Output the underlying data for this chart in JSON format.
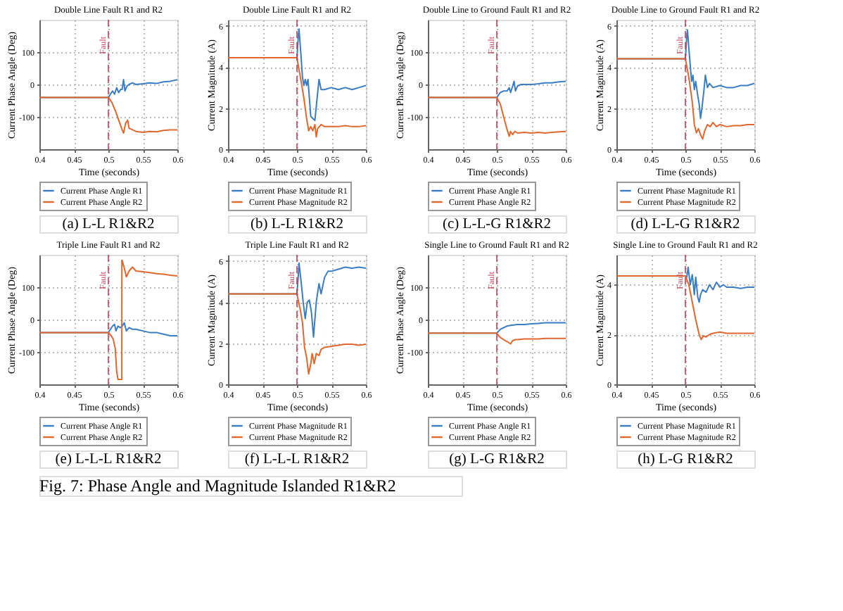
{
  "chart_data": [
    {
      "type": "line",
      "title": "Double Line Fault R1 and R2",
      "xlabel": "Time (seconds)",
      "ylabel": "Current Phase Angle (Deg)",
      "xlim": [
        0.4,
        0.6
      ],
      "xticks": [
        0.4,
        0.45,
        0.5,
        0.55,
        0.6
      ],
      "ylim": [
        -200,
        200
      ],
      "yticks": [
        -100,
        0,
        100
      ],
      "grid": true,
      "legend": "bottom",
      "line_style": "solid",
      "marker": "none",
      "series": [
        {
          "name": "Current Phase Angle R1",
          "color": "#3a7dc4",
          "x": [
            0.4,
            0.5,
            0.503,
            0.506,
            0.509,
            0.512,
            0.515,
            0.518,
            0.52,
            0.522,
            0.524,
            0.527,
            0.53,
            0.535,
            0.54,
            0.55,
            0.56,
            0.57,
            0.58,
            0.59,
            0.6
          ],
          "values": [
            -40,
            -40,
            -30,
            -20,
            -30,
            -10,
            -25,
            -15,
            -15,
            15,
            -20,
            -5,
            0,
            5,
            0,
            2,
            5,
            3,
            8,
            10,
            15
          ]
        },
        {
          "name": "Current Phase Angle R2",
          "color": "#e0682e",
          "x": [
            0.4,
            0.5,
            0.505,
            0.51,
            0.515,
            0.52,
            0.522,
            0.525,
            0.528,
            0.53,
            0.535,
            0.54,
            0.55,
            0.56,
            0.57,
            0.58,
            0.59,
            0.6
          ],
          "values": [
            -40,
            -40,
            -55,
            -80,
            -110,
            -140,
            -150,
            -120,
            -110,
            -135,
            -140,
            -145,
            -148,
            -145,
            -146,
            -142,
            -140,
            -140
          ]
        }
      ],
      "ref_lines": [
        {
          "axis": "x",
          "value": 0.5,
          "label": "Fault",
          "color": "#c0405a",
          "line_style": "dashed"
        }
      ],
      "annotations": [
        "(a) L-L R1&R2"
      ]
    },
    {
      "type": "line",
      "title": "Double Line Fault R1 and R2",
      "xlabel": "Time (seconds)",
      "ylabel": "Current Magnitude (A)",
      "xlim": [
        0.4,
        0.6
      ],
      "xticks": [
        0.4,
        0.45,
        0.5,
        0.55,
        0.6
      ],
      "ylim": [
        0,
        6.3
      ],
      "yticks": [
        0,
        2,
        4,
        6
      ],
      "grid": true,
      "legend": "bottom",
      "line_style": "solid",
      "marker": "none",
      "series": [
        {
          "name": "Current Phase Magnitude R1",
          "color": "#3a7dc4",
          "x": [
            0.4,
            0.5,
            0.502,
            0.503,
            0.506,
            0.508,
            0.51,
            0.512,
            0.514,
            0.516,
            0.518,
            0.52,
            0.523,
            0.526,
            0.529,
            0.532,
            0.535,
            0.54,
            0.55,
            0.56,
            0.57,
            0.58,
            0.59,
            0.6
          ],
          "values": [
            4.45,
            4.45,
            5.5,
            5.85,
            4.5,
            3.5,
            3.1,
            3.4,
            3.1,
            3.4,
            2.5,
            1.6,
            1.5,
            1.4,
            2.4,
            3.4,
            2.9,
            2.9,
            3.0,
            2.9,
            3.0,
            2.9,
            3.0,
            3.1
          ]
        },
        {
          "name": "Current Phase Magnitude R2",
          "color": "#e0682e",
          "x": [
            0.4,
            0.5,
            0.505,
            0.51,
            0.514,
            0.517,
            0.52,
            0.523,
            0.526,
            0.528,
            0.53,
            0.535,
            0.54,
            0.55,
            0.56,
            0.57,
            0.58,
            0.59,
            0.6
          ],
          "values": [
            4.45,
            4.45,
            3.5,
            2.5,
            1.5,
            0.9,
            1.1,
            0.9,
            1.2,
            0.6,
            1.0,
            1.2,
            1.1,
            1.1,
            1.1,
            1.15,
            1.1,
            1.1,
            1.15
          ]
        }
      ],
      "ref_lines": [
        {
          "axis": "x",
          "value": 0.5,
          "label": "Fault",
          "color": "#c0405a",
          "line_style": "dashed"
        }
      ],
      "annotations": [
        "(b) L-L R1&R2"
      ]
    },
    {
      "type": "line",
      "title": "Double Line to Ground Fault R1 and R2",
      "xlabel": "Time (seconds)",
      "ylabel": "Current Phase Angle (Deg)",
      "xlim": [
        0.4,
        0.6
      ],
      "xticks": [
        0.4,
        0.45,
        0.5,
        0.55,
        0.6
      ],
      "ylim": [
        -200,
        200
      ],
      "yticks": [
        -100,
        0,
        100
      ],
      "grid": true,
      "legend": "bottom",
      "line_style": "solid",
      "marker": "none",
      "series": [
        {
          "name": "Current Phase Angle R1",
          "color": "#3a7dc4",
          "x": [
            0.4,
            0.5,
            0.505,
            0.51,
            0.515,
            0.518,
            0.52,
            0.523,
            0.525,
            0.527,
            0.53,
            0.535,
            0.54,
            0.55,
            0.56,
            0.57,
            0.58,
            0.59,
            0.6
          ],
          "values": [
            -40,
            -40,
            -25,
            -20,
            -20,
            -10,
            -25,
            -5,
            10,
            -20,
            -5,
            0,
            0,
            0,
            2,
            5,
            5,
            8,
            10
          ]
        },
        {
          "name": "Current Phase Angle R2",
          "color": "#e0682e",
          "x": [
            0.4,
            0.5,
            0.505,
            0.51,
            0.515,
            0.518,
            0.52,
            0.523,
            0.526,
            0.53,
            0.54,
            0.55,
            0.56,
            0.57,
            0.58,
            0.59,
            0.6
          ],
          "values": [
            -40,
            -40,
            -60,
            -100,
            -140,
            -160,
            -145,
            -155,
            -145,
            -150,
            -148,
            -150,
            -148,
            -150,
            -148,
            -146,
            -145
          ]
        }
      ],
      "ref_lines": [
        {
          "axis": "x",
          "value": 0.5,
          "label": "Fault",
          "color": "#c0405a",
          "line_style": "dashed"
        }
      ],
      "annotations": [
        "(c) L-L-G R1&R2"
      ]
    },
    {
      "type": "line",
      "title": "Double Line to Ground Fault R1 and R2",
      "xlabel": "Time (seconds)",
      "ylabel": "Current Magnitude (A)",
      "xlim": [
        0.4,
        0.6
      ],
      "xticks": [
        0.4,
        0.45,
        0.5,
        0.55,
        0.6
      ],
      "ylim": [
        0,
        6.3
      ],
      "yticks": [
        0,
        2,
        4,
        6
      ],
      "grid": true,
      "legend": "bottom",
      "line_style": "solid",
      "marker": "none",
      "series": [
        {
          "name": "Current Phase Magnitude R1",
          "color": "#3a7dc4",
          "x": [
            0.4,
            0.5,
            0.502,
            0.503,
            0.506,
            0.509,
            0.511,
            0.513,
            0.515,
            0.518,
            0.52,
            0.522,
            0.524,
            0.527,
            0.529,
            0.532,
            0.535,
            0.54,
            0.55,
            0.56,
            0.57,
            0.58,
            0.59,
            0.6
          ],
          "values": [
            4.4,
            4.4,
            5.5,
            5.8,
            4.5,
            3.3,
            3.6,
            2.9,
            3.3,
            2.6,
            2.2,
            1.5,
            2.0,
            2.9,
            3.6,
            3.0,
            3.2,
            3.0,
            3.1,
            3.0,
            3.0,
            3.1,
            3.1,
            3.2
          ]
        },
        {
          "name": "Current Phase Magnitude R2",
          "color": "#e0682e",
          "x": [
            0.4,
            0.5,
            0.505,
            0.51,
            0.513,
            0.516,
            0.519,
            0.522,
            0.525,
            0.528,
            0.532,
            0.536,
            0.54,
            0.545,
            0.55,
            0.56,
            0.57,
            0.58,
            0.59,
            0.6
          ],
          "values": [
            4.4,
            4.4,
            3.5,
            2.3,
            1.2,
            0.8,
            1.0,
            0.7,
            0.5,
            0.9,
            1.2,
            1.1,
            1.3,
            1.1,
            1.2,
            1.1,
            1.15,
            1.15,
            1.2,
            1.2
          ]
        }
      ],
      "ref_lines": [
        {
          "axis": "x",
          "value": 0.5,
          "label": "Fault",
          "color": "#c0405a",
          "line_style": "dashed"
        }
      ],
      "annotations": [
        "(d) L-L-G R1&R2"
      ]
    },
    {
      "type": "line",
      "title": "Triple Line Fault R1 and R2",
      "xlabel": "Time (seconds)",
      "ylabel": "Current Phase Angle (Deg)",
      "xlim": [
        0.4,
        0.6
      ],
      "xticks": [
        0.4,
        0.45,
        0.5,
        0.55,
        0.6
      ],
      "ylim": [
        -200,
        200
      ],
      "yticks": [
        -100,
        0,
        100
      ],
      "grid": true,
      "legend": "bottom",
      "line_style": "solid",
      "marker": "none",
      "series": [
        {
          "name": "Current Phase Angle R1",
          "color": "#3a7dc4",
          "x": [
            0.4,
            0.5,
            0.503,
            0.506,
            0.509,
            0.511,
            0.514,
            0.517,
            0.52,
            0.523,
            0.526,
            0.53,
            0.535,
            0.54,
            0.55,
            0.56,
            0.57,
            0.58,
            0.59,
            0.6
          ],
          "values": [
            -40,
            -40,
            -30,
            -20,
            -15,
            -35,
            -20,
            -25,
            -20,
            -10,
            -35,
            -25,
            -30,
            -30,
            -35,
            -40,
            -40,
            -45,
            -50,
            -50
          ]
        },
        {
          "name": "Current Phase Angle R2",
          "color": "#e0682e",
          "x": [
            0.4,
            0.5,
            0.504,
            0.507,
            0.51,
            0.512,
            0.514,
            0.5195,
            0.5196,
            0.52,
            0.523,
            0.526,
            0.53,
            0.535,
            0.54,
            0.55,
            0.56,
            0.57,
            0.58,
            0.59,
            0.6
          ],
          "values": [
            -40,
            -40,
            -50,
            -60,
            -90,
            -160,
            -185,
            -185,
            183,
            183,
            160,
            132,
            150,
            162,
            150,
            148,
            145,
            142,
            140,
            137,
            135
          ]
        }
      ],
      "ref_lines": [
        {
          "axis": "x",
          "value": 0.5,
          "label": "Fault",
          "color": "#c0405a",
          "line_style": "dashed"
        }
      ],
      "annotations": [
        "(e) L-L-L R1&R2"
      ]
    },
    {
      "type": "line",
      "title": "Triple Line Fault R1 and R2",
      "xlabel": "Time (seconds)",
      "ylabel": "Current Magnitude (A)",
      "xlim": [
        0.4,
        0.6
      ],
      "xticks": [
        0.4,
        0.45,
        0.5,
        0.55,
        0.6
      ],
      "ylim": [
        0,
        6.3
      ],
      "yticks": [
        0,
        2,
        4,
        6
      ],
      "grid": true,
      "legend": "bottom",
      "line_style": "solid",
      "marker": "none",
      "series": [
        {
          "name": "Current Phase Magnitude R1",
          "color": "#3a7dc4",
          "x": [
            0.4,
            0.5,
            0.502,
            0.503,
            0.506,
            0.509,
            0.512,
            0.515,
            0.518,
            0.521,
            0.524,
            0.528,
            0.532,
            0.535,
            0.54,
            0.545,
            0.55,
            0.56,
            0.57,
            0.58,
            0.59,
            0.6
          ],
          "values": [
            4.4,
            4.4,
            5.3,
            5.9,
            5.0,
            4.0,
            3.2,
            4.0,
            4.1,
            3.5,
            2.3,
            4.0,
            4.9,
            4.4,
            5.2,
            5.5,
            5.5,
            5.6,
            5.7,
            5.65,
            5.7,
            5.65
          ]
        },
        {
          "name": "Current Phase Magnitude R2",
          "color": "#e0682e",
          "x": [
            0.4,
            0.5,
            0.505,
            0.508,
            0.511,
            0.514,
            0.517,
            0.52,
            0.522,
            0.525,
            0.528,
            0.532,
            0.535,
            0.54,
            0.55,
            0.56,
            0.57,
            0.58,
            0.59,
            0.6
          ],
          "values": [
            4.4,
            4.4,
            3.6,
            3.0,
            1.8,
            1.3,
            0.5,
            1.0,
            1.5,
            1.0,
            1.5,
            1.4,
            1.7,
            1.8,
            1.85,
            1.9,
            1.95,
            1.95,
            1.9,
            1.95
          ]
        }
      ],
      "ref_lines": [
        {
          "axis": "x",
          "value": 0.5,
          "label": "Fault",
          "color": "#c0405a",
          "line_style": "dashed"
        }
      ],
      "annotations": [
        "(f) L-L-L R1&R2"
      ]
    },
    {
      "type": "line",
      "title": "Single Line to Ground Fault R1 and R2",
      "xlabel": "Time (seconds)",
      "ylabel": "Current Phase Angle (Deg)",
      "xlim": [
        0.4,
        0.6
      ],
      "xticks": [
        0.4,
        0.45,
        0.5,
        0.55,
        0.6
      ],
      "ylim": [
        -200,
        200
      ],
      "yticks": [
        -100,
        0,
        100
      ],
      "grid": true,
      "legend": "bottom",
      "line_style": "solid",
      "marker": "none",
      "series": [
        {
          "name": "Current Phase Angle R1",
          "color": "#3a7dc4",
          "x": [
            0.4,
            0.5,
            0.505,
            0.51,
            0.515,
            0.52,
            0.53,
            0.54,
            0.55,
            0.56,
            0.57,
            0.58,
            0.59,
            0.6
          ],
          "values": [
            -42,
            -42,
            -30,
            -25,
            -20,
            -18,
            -15,
            -15,
            -13,
            -12,
            -10,
            -10,
            -10,
            -10
          ]
        },
        {
          "name": "Current Phase Angle R2",
          "color": "#e0682e",
          "x": [
            0.4,
            0.5,
            0.505,
            0.51,
            0.515,
            0.52,
            0.523,
            0.527,
            0.53,
            0.54,
            0.55,
            0.56,
            0.57,
            0.58,
            0.59,
            0.6
          ],
          "values": [
            -42,
            -42,
            -55,
            -62,
            -68,
            -75,
            -65,
            -62,
            -62,
            -60,
            -60,
            -60,
            -58,
            -58,
            -58,
            -58
          ]
        }
      ],
      "ref_lines": [
        {
          "axis": "x",
          "value": 0.5,
          "label": "Fault",
          "color": "#c0405a",
          "line_style": "dashed"
        }
      ],
      "annotations": [
        "(g) L-G R1&R2"
      ]
    },
    {
      "type": "line",
      "title": "Single Line to Ground Fault R1 and R2",
      "xlabel": "Time (seconds)",
      "ylabel": "Current Magnitude (A)",
      "xlim": [
        0.4,
        0.6
      ],
      "xticks": [
        0.4,
        0.45,
        0.5,
        0.55,
        0.6
      ],
      "ylim": [
        0,
        5.2
      ],
      "yticks": [
        0,
        2,
        4
      ],
      "grid": true,
      "legend": "bottom",
      "line_style": "solid",
      "marker": "none",
      "series": [
        {
          "name": "Current Phase Magnitude R1",
          "color": "#3a7dc4",
          "x": [
            0.4,
            0.5,
            0.502,
            0.504,
            0.507,
            0.51,
            0.513,
            0.515,
            0.518,
            0.52,
            0.522,
            0.525,
            0.53,
            0.535,
            0.54,
            0.545,
            0.55,
            0.555,
            0.56,
            0.57,
            0.58,
            0.59,
            0.6
          ],
          "values": [
            4.35,
            4.35,
            4.3,
            4.7,
            4.0,
            4.4,
            3.6,
            4.3,
            3.5,
            3.3,
            3.6,
            3.8,
            3.7,
            4.0,
            3.8,
            4.1,
            3.9,
            4.0,
            3.9,
            3.9,
            3.85,
            3.9,
            3.9
          ]
        },
        {
          "name": "Current Phase Magnitude R2",
          "color": "#e0682e",
          "x": [
            0.4,
            0.5,
            0.505,
            0.51,
            0.515,
            0.52,
            0.523,
            0.526,
            0.53,
            0.535,
            0.54,
            0.55,
            0.56,
            0.57,
            0.58,
            0.59,
            0.6
          ],
          "values": [
            4.35,
            4.35,
            4.0,
            3.3,
            2.6,
            2.0,
            1.8,
            1.95,
            1.9,
            2.0,
            2.05,
            2.1,
            2.05,
            2.05,
            2.05,
            2.05,
            2.05
          ]
        }
      ],
      "ref_lines": [
        {
          "axis": "x",
          "value": 0.5,
          "label": "Fault",
          "color": "#c0405a",
          "line_style": "dashed"
        }
      ],
      "annotations": [
        "(h) L-G R1&R2",
        "Fig. 7: Phase Angle and Magnitude Islanded R1&R2"
      ]
    }
  ]
}
